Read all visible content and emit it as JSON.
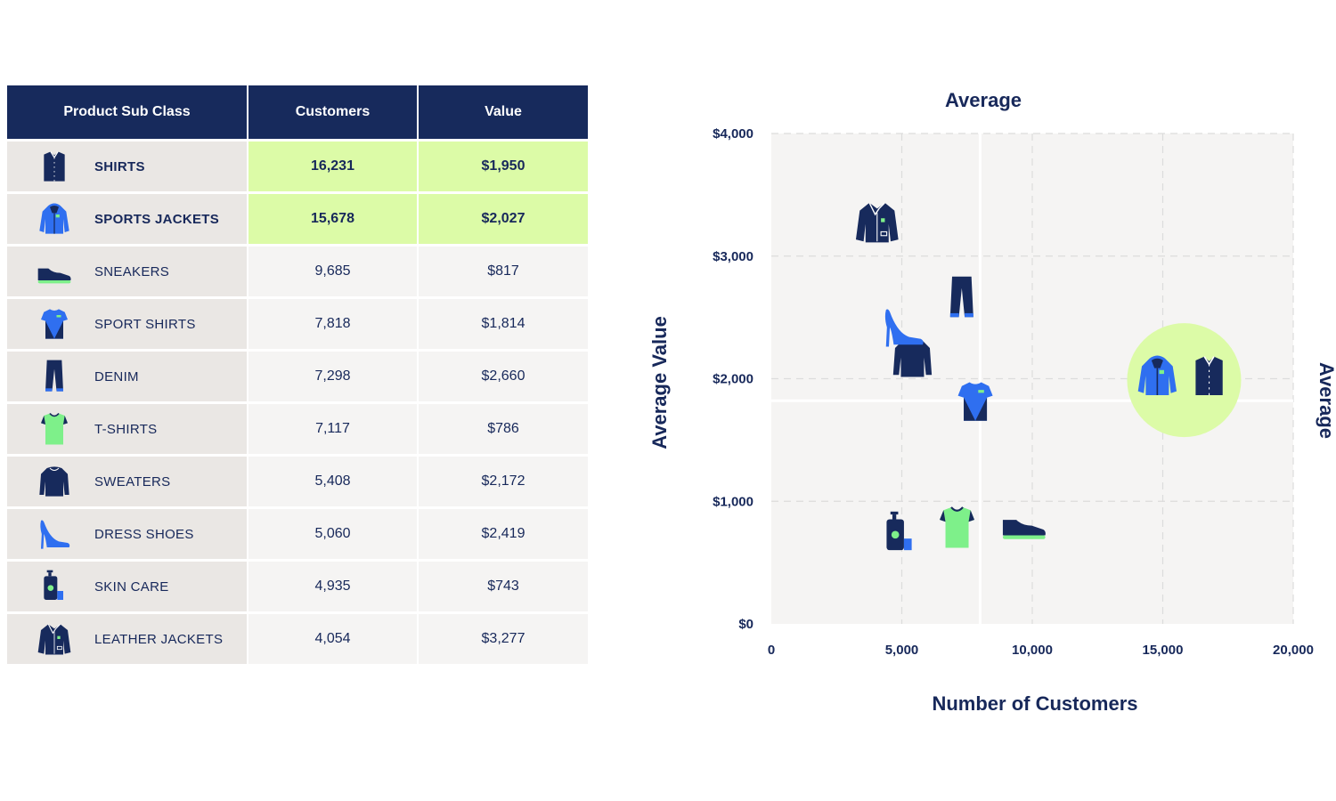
{
  "table": {
    "headers": [
      "Product Sub Class",
      "Customers",
      "Value"
    ],
    "rows": [
      {
        "name": "SHIRTS",
        "customers": "16,231",
        "value": "$1,950",
        "icon": "shirt-icon",
        "highlight": true
      },
      {
        "name": "SPORTS JACKETS",
        "customers": "15,678",
        "value": "$2,027",
        "icon": "sports-jacket-icon",
        "highlight": true
      },
      {
        "name": "SNEAKERS",
        "customers": "9,685",
        "value": "$817",
        "icon": "sneaker-icon",
        "highlight": false
      },
      {
        "name": "SPORT SHIRTS",
        "customers": "7,818",
        "value": "$1,814",
        "icon": "sport-shirt-icon",
        "highlight": false
      },
      {
        "name": "DENIM",
        "customers": "7,298",
        "value": "$2,660",
        "icon": "denim-icon",
        "highlight": false
      },
      {
        "name": "T-SHIRTS",
        "customers": "7,117",
        "value": "$786",
        "icon": "tshirt-icon",
        "highlight": false
      },
      {
        "name": "SWEATERS",
        "customers": "5,408",
        "value": "$2,172",
        "icon": "sweater-icon",
        "highlight": false
      },
      {
        "name": "DRESS SHOES",
        "customers": "5,060",
        "value": "$2,419",
        "icon": "dress-shoe-icon",
        "highlight": false
      },
      {
        "name": "SKIN CARE",
        "customers": "4,935",
        "value": "$743",
        "icon": "skin-care-icon",
        "highlight": false
      },
      {
        "name": "LEATHER JACKETS",
        "customers": "4,054",
        "value": "$3,277",
        "icon": "leather-jacket-icon",
        "highlight": false
      }
    ]
  },
  "colors": {
    "navy": "#172a5c",
    "blue": "#2f6ff0",
    "green": "#7ef08a",
    "highlight": "#dcfba7",
    "plot_bg": "#f5f4f3"
  },
  "chart_data": {
    "type": "scatter",
    "xlabel": "Number of Customers",
    "ylabel": "Average Value",
    "top_label": "Average",
    "right_label": "Average",
    "xlim": [
      0,
      20000
    ],
    "ylim": [
      0,
      4000
    ],
    "xticks": [
      0,
      5000,
      10000,
      15000,
      20000
    ],
    "xtick_labels": [
      "0",
      "5,000",
      "10,000",
      "15,000",
      "20,000"
    ],
    "yticks": [
      0,
      1000,
      2000,
      3000,
      4000
    ],
    "ytick_labels": [
      "$0",
      "$1,000",
      "$2,000",
      "$3,000",
      "$4,000"
    ],
    "avg_x": 8000,
    "avg_y": 1820,
    "grid": true,
    "points": [
      {
        "name": "SHIRTS",
        "x": 16231,
        "y": 1950,
        "icon": "shirt-icon",
        "highlight": true
      },
      {
        "name": "SPORTS JACKETS",
        "x": 15678,
        "y": 2027,
        "icon": "sports-jacket-icon",
        "highlight": true
      },
      {
        "name": "SNEAKERS",
        "x": 9685,
        "y": 817,
        "icon": "sneaker-icon"
      },
      {
        "name": "SPORT SHIRTS",
        "x": 7818,
        "y": 1814,
        "icon": "sport-shirt-icon"
      },
      {
        "name": "DENIM",
        "x": 7298,
        "y": 2660,
        "icon": "denim-icon"
      },
      {
        "name": "T-SHIRTS",
        "x": 7117,
        "y": 786,
        "icon": "tshirt-icon"
      },
      {
        "name": "SWEATERS",
        "x": 5408,
        "y": 2172,
        "icon": "sweater-icon"
      },
      {
        "name": "DRESS SHOES",
        "x": 5060,
        "y": 2419,
        "icon": "dress-shoe-icon"
      },
      {
        "name": "SKIN CARE",
        "x": 4935,
        "y": 743,
        "icon": "skin-care-icon"
      },
      {
        "name": "LEATHER JACKETS",
        "x": 4054,
        "y": 3277,
        "icon": "leather-jacket-icon"
      }
    ]
  }
}
